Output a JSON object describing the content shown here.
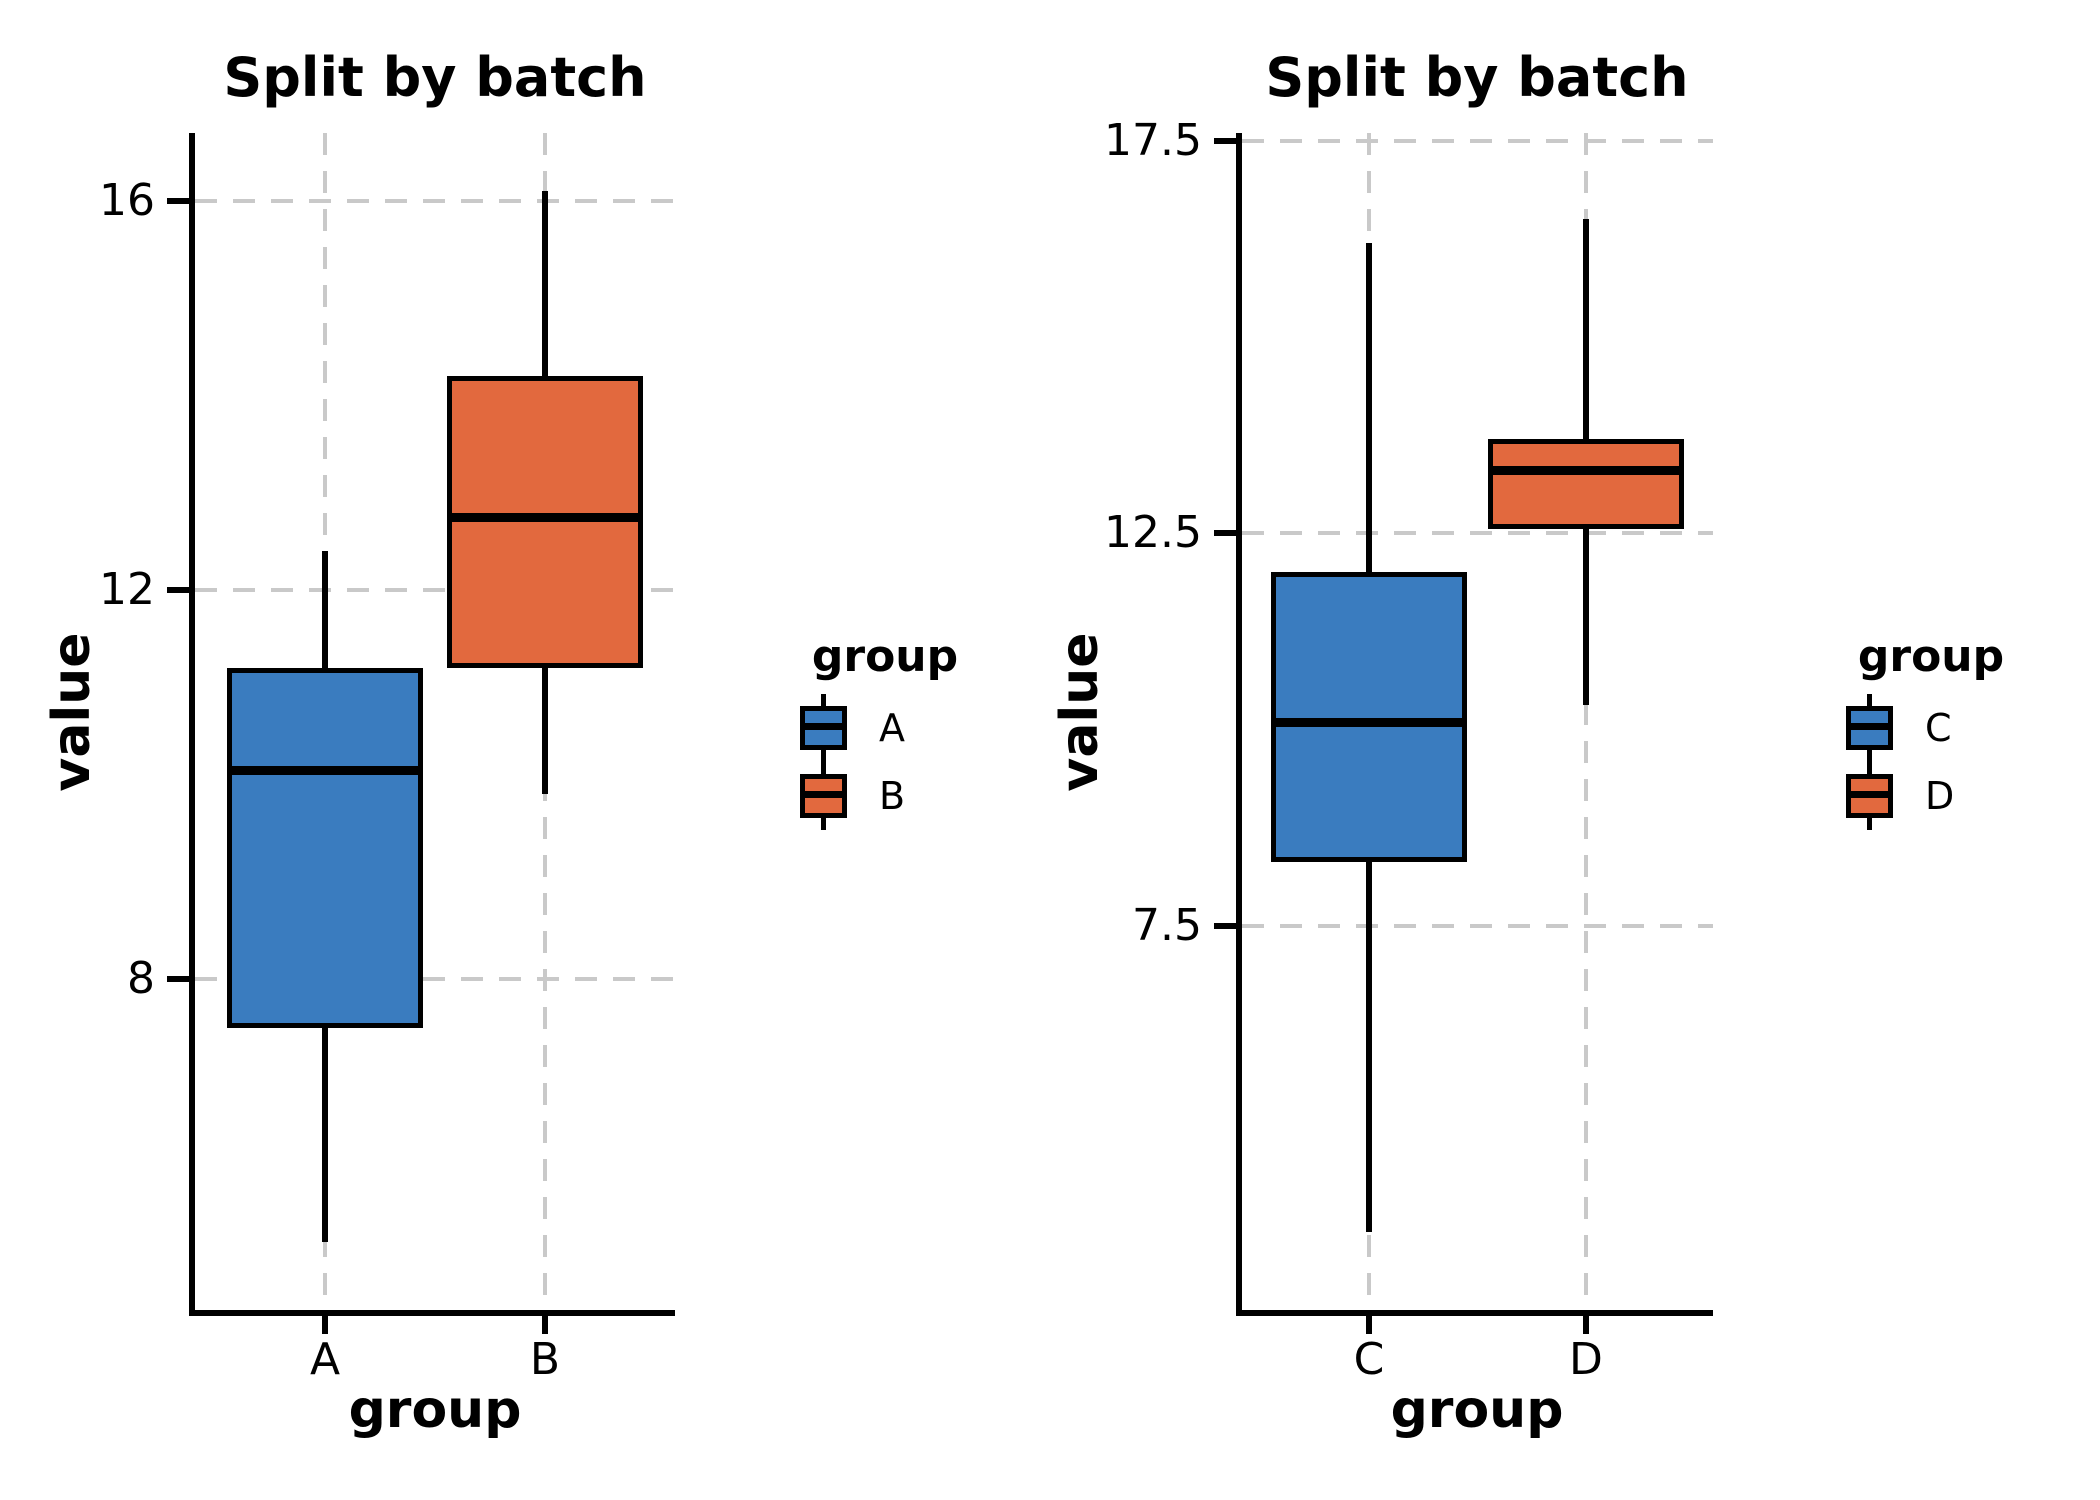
{
  "figure": {
    "background": "#ffffff"
  },
  "palette": {
    "blue": "#3a7cbf",
    "orange": "#e2693e",
    "grid_gray": "#c9c9c9",
    "line_black": "#000000"
  },
  "chart_data": [
    {
      "type": "boxplot",
      "title": "Split by batch",
      "xlabel": "group",
      "ylabel": "value",
      "categories": [
        "A",
        "B"
      ],
      "ylim": [
        4.6,
        16.7
      ],
      "yticks": [
        {
          "label": "16",
          "value": 16
        },
        {
          "label": "12",
          "value": 12
        },
        {
          "label": "8",
          "value": 8
        }
      ],
      "grid": "dashed-both-axes",
      "legend": {
        "title": "group",
        "position": "right-of-panel",
        "entries": [
          {
            "label": "A",
            "color_key": "blue"
          },
          {
            "label": "B",
            "color_key": "orange"
          }
        ]
      },
      "boxes": [
        {
          "category": "A",
          "color_key": "blue",
          "whisker_low": 5.3,
          "q1": 7.5,
          "median": 10.15,
          "q3": 11.2,
          "whisker_high": 12.4,
          "outliers": []
        },
        {
          "category": "B",
          "color_key": "orange",
          "whisker_low": 9.9,
          "q1": 11.2,
          "median": 12.75,
          "q3": 14.2,
          "whisker_high": 16.1,
          "outliers": []
        }
      ]
    },
    {
      "type": "boxplot",
      "title": "Split by batch",
      "xlabel": "group",
      "ylabel": "value",
      "categories": [
        "C",
        "D"
      ],
      "ylim": [
        2.6,
        17.6
      ],
      "yticks": [
        {
          "label": "17.5",
          "value": 17.5
        },
        {
          "label": "12.5",
          "value": 12.5
        },
        {
          "label": "7.5",
          "value": 7.5
        }
      ],
      "grid": "dashed-both-axes",
      "legend": {
        "title": "group",
        "position": "right-of-panel",
        "entries": [
          {
            "label": "C",
            "color_key": "blue"
          },
          {
            "label": "D",
            "color_key": "orange"
          }
        ]
      },
      "boxes": [
        {
          "category": "C",
          "color_key": "blue",
          "whisker_low": 3.6,
          "q1": 8.3,
          "median": 10.1,
          "q3": 12.0,
          "whisker_high": 16.2,
          "outliers": []
        },
        {
          "category": "D",
          "color_key": "orange",
          "whisker_low": 10.3,
          "q1": 12.55,
          "median": 13.3,
          "q3": 13.7,
          "whisker_high": 16.5,
          "outliers": []
        }
      ]
    }
  ]
}
